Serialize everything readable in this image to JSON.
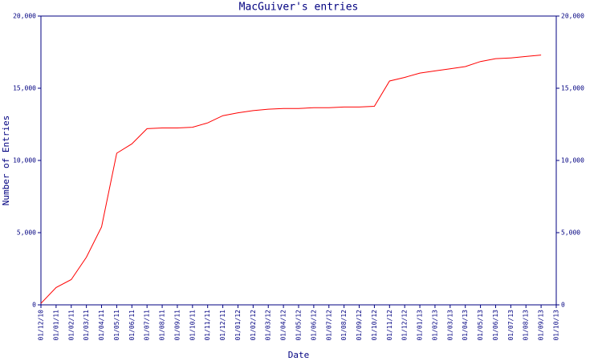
{
  "chart_data": {
    "type": "line",
    "title": "MacGuiver's entries",
    "x_label": "Date",
    "y_label": "Number of Entries",
    "categories": [
      "01/12/10",
      "01/01/11",
      "01/02/11",
      "01/03/11",
      "01/04/11",
      "01/05/11",
      "01/06/11",
      "01/07/11",
      "01/08/11",
      "01/09/11",
      "01/10/11",
      "01/11/11",
      "01/12/11",
      "01/01/12",
      "01/02/12",
      "01/03/12",
      "01/04/12",
      "01/05/12",
      "01/06/12",
      "01/07/12",
      "01/08/12",
      "01/09/12",
      "01/10/12",
      "01/11/12",
      "01/12/12",
      "01/01/13",
      "01/02/13",
      "01/03/13",
      "01/04/13",
      "01/05/13",
      "01/06/13",
      "01/07/13",
      "01/08/13",
      "01/09/13",
      "01/10/13"
    ],
    "series": [
      {
        "name": "Entries",
        "color": "#ff0000",
        "values": [
          100,
          1200,
          1750,
          3300,
          5400,
          10500,
          11150,
          12200,
          12250,
          12250,
          12300,
          12600,
          13100,
          13300,
          13450,
          13550,
          13600,
          13600,
          13650,
          13650,
          13700,
          13700,
          13750,
          15500,
          15750,
          16050,
          16200,
          16350,
          16500,
          16850,
          17050,
          17100,
          17200,
          17300,
          null
        ]
      }
    ],
    "ylim": [
      0,
      20000
    ],
    "yticks": [
      0,
      {
        "value": 5000,
        "label": "5,000"
      },
      {
        "value": 10000,
        "label": "10,000"
      },
      {
        "value": 15000,
        "label": "15,000"
      },
      {
        "value": 20000,
        "label": "20,000"
      }
    ],
    "y2lim": [
      0,
      20000
    ],
    "y2ticks": [
      0,
      {
        "value": 5000,
        "label": "5,000"
      },
      {
        "value": 10000,
        "label": "10,000"
      },
      {
        "value": 15000,
        "label": "15,000"
      },
      {
        "value": 20000,
        "label": "20,000"
      }
    ],
    "axis_color": "#000080"
  }
}
